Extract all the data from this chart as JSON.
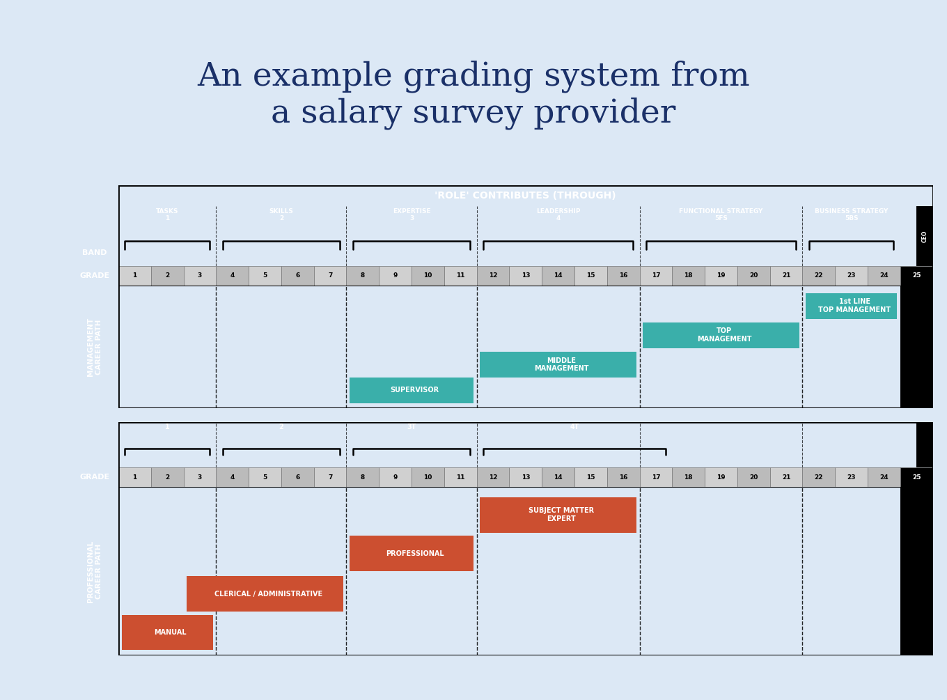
{
  "title": "An example grading system from\na salary survey provider",
  "title_color": "#1a3068",
  "bg_color": "#dce8f5",
  "black_header": "#000000",
  "dark_gray": "#595959",
  "mid_gray": "#808080",
  "grade_light": "#d0d0d0",
  "grade_dark": "#bbbbbb",
  "teal_color": "#3aafaa",
  "red_color": "#cc4f30",
  "white": "#ffffff",
  "mgmt_header": "'ROLE' CONTRIBUTES (THROUGH)",
  "mgmt_bands": [
    {
      "label": "TASKS\n1",
      "start": 1,
      "end": 3
    },
    {
      "label": "SKILLS\n2",
      "start": 4,
      "end": 7
    },
    {
      "label": "EXPERTISE\n3",
      "start": 8,
      "end": 11
    },
    {
      "label": "LEADERSHIP\n4",
      "start": 12,
      "end": 16
    },
    {
      "label": "FUNCTIONAL STRATEGY\n5FS",
      "start": 17,
      "end": 21
    },
    {
      "label": "BUSINESS STRATEGY\n5BS",
      "start": 22,
      "end": 24
    }
  ],
  "band_label": "BAND",
  "grade_label": "GRADE",
  "mgmt_career_label": "MANAGEMENT\nCAREER PATH",
  "mgmt_bars": [
    {
      "label": "SUPERVISOR",
      "start": 8,
      "end": 12,
      "row": 0
    },
    {
      "label": "MIDDLE\nMANAGEMENT",
      "start": 12,
      "end": 17,
      "row": 1
    },
    {
      "label": "TOP\nMANAGEMENT",
      "start": 17,
      "end": 22,
      "row": 2
    },
    {
      "label": "1st LINE\nTOP MANAGEMENT",
      "start": 22,
      "end": 25,
      "row": 3
    }
  ],
  "prof_bands": [
    {
      "label": "1",
      "start": 1,
      "end": 3
    },
    {
      "label": "2",
      "start": 4,
      "end": 7
    },
    {
      "label": "3T",
      "start": 8,
      "end": 11
    },
    {
      "label": "4T",
      "start": 12,
      "end": 17
    }
  ],
  "prof_career_label": "PROFESSIONAL\nCAREER PATH",
  "prof_bars": [
    {
      "label": "MANUAL",
      "start": 1,
      "end": 4,
      "row": 0
    },
    {
      "label": "CLERICAL / ADMINISTRATIVE",
      "start": 3,
      "end": 8,
      "row": 1
    },
    {
      "label": "PROFESSIONAL",
      "start": 8,
      "end": 12,
      "row": 2
    },
    {
      "label": "SUBJECT MATTER\nEXPERT",
      "start": 12,
      "end": 17,
      "row": 3
    }
  ],
  "dashed_lines": [
    4,
    8,
    12,
    17,
    22
  ],
  "num_grades": 25
}
